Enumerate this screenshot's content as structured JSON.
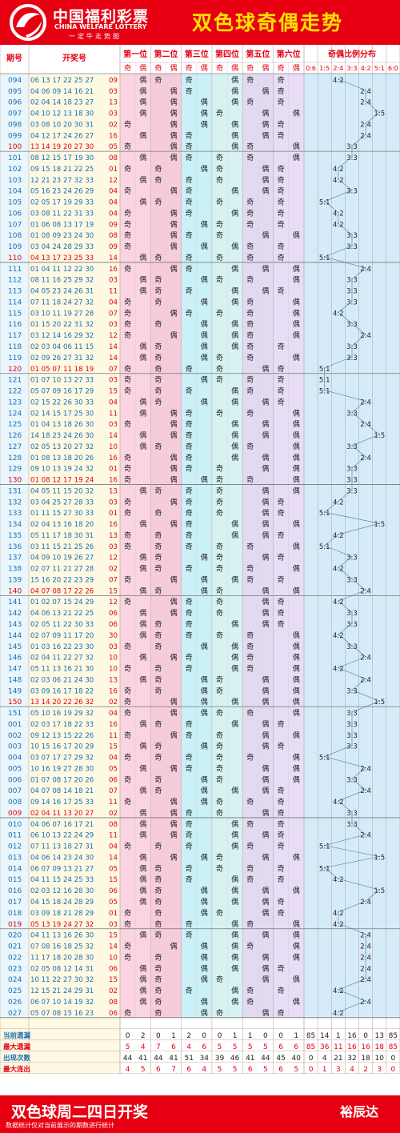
{
  "header": {
    "logo_cn": "中国福利彩票",
    "logo_en": "CHINA WELFARE LOTTERY",
    "logo_slogan": "一定牛走势图",
    "title": "双色球奇偶走势"
  },
  "footer": {
    "title": "双色球周二四日开奖",
    "brand": "裕辰达",
    "note": "数据统计仅对当前展示的期数进行统计"
  },
  "colors": {
    "brand_red": "#e60012",
    "title_yellow": "#ffe100",
    "odd_text": "#222222",
    "win_text": "#e60012",
    "pos_tint": [
      "#fbd4e2",
      "#f6ccdd",
      "#c9f1f7",
      "#d6f3f2",
      "#e3daf1",
      "#e7ddf6"
    ]
  },
  "chart_data": {
    "type": "table",
    "columns": {
      "issue": "期号",
      "numbers": "开奖号",
      "positions": [
        "第一位",
        "第二位",
        "第三位",
        "第四位",
        "第五位",
        "第六位"
      ],
      "odd": "奇",
      "even": "偶",
      "ratio_title": "奇偶比例分布",
      "ratios": [
        "0:6",
        "1:5",
        "2:4",
        "3:3",
        "4:2",
        "5:1",
        "6:0"
      ]
    },
    "rows": [
      [
        "094",
        "06 13 17 22 25 27",
        "09"
      ],
      [
        "095",
        "04 06 09 14 16 21",
        "03"
      ],
      [
        "096",
        "02 04 14 18 23 27",
        "13"
      ],
      [
        "097",
        "04 10 12 13 18 30",
        "03"
      ],
      [
        "098",
        "03 08 10 20 30 31",
        "02"
      ],
      [
        "099",
        "04 12 17 24 26 27",
        "16"
      ],
      [
        "100",
        "13 14 19 20 27 30",
        "05"
      ],
      [
        "101",
        "08 12 15 17 19 30",
        "08"
      ],
      [
        "102",
        "09 15 18 21 22 25",
        "01"
      ],
      [
        "103",
        "12 21 23 27 32 33",
        "12"
      ],
      [
        "104",
        "05 16 23 24 26 29",
        "04"
      ],
      [
        "105",
        "02 05 17 19 29 33",
        "04"
      ],
      [
        "106",
        "03 08 11 22 31 33",
        "04"
      ],
      [
        "107",
        "01 06 08 13 17 19",
        "09"
      ],
      [
        "108",
        "01 08 09 23 24 30",
        "08"
      ],
      [
        "109",
        "03 04 24 28 29 33",
        "09"
      ],
      [
        "110",
        "04 13 17 23 25 33",
        "14"
      ],
      [
        "111",
        "01 04 11 12 22 30",
        "16"
      ],
      [
        "112",
        "08 11 16 25 29 32",
        "03"
      ],
      [
        "113",
        "04 05 23 24 26 31",
        "11"
      ],
      [
        "114",
        "07 11 18 24 27 32",
        "04"
      ],
      [
        "115",
        "03 10 11 19 27 28",
        "07"
      ],
      [
        "116",
        "01 15 20 22 31 32",
        "03"
      ],
      [
        "117",
        "03 12 14 16 29 32",
        "12"
      ],
      [
        "118",
        "02 03 04 06 11 15",
        "14"
      ],
      [
        "119",
        "02 09 26 27 31 32",
        "14"
      ],
      [
        "120",
        "01 05 07 11 18 19",
        "07"
      ],
      [
        "121",
        "01 07 10 13 27 33",
        "03"
      ],
      [
        "122",
        "05 07 09 16 17 29",
        "15"
      ],
      [
        "123",
        "02 15 22 26 30 33",
        "04"
      ],
      [
        "124",
        "02 14 15 17 25 30",
        "11"
      ],
      [
        "125",
        "01 04 13 18 26 30",
        "03"
      ],
      [
        "126",
        "14 18 23 24 26 30",
        "14"
      ],
      [
        "127",
        "02 05 13 20 27 32",
        "10"
      ],
      [
        "128",
        "01 08 13 18 20 26",
        "16"
      ],
      [
        "129",
        "09 10 13 19 24 32",
        "01"
      ],
      [
        "130",
        "01 08 12 17 19 24",
        "16"
      ],
      [
        "131",
        "04 05 11 15 20 32",
        "13"
      ],
      [
        "132",
        "03 04 25 27 28 33",
        "03"
      ],
      [
        "133",
        "01 11 15 27 30 33",
        "01"
      ],
      [
        "134",
        "02 04 13 16 18 20",
        "16"
      ],
      [
        "135",
        "05 11 17 18 30 31",
        "13"
      ],
      [
        "136",
        "03 11 15 21 25 26",
        "03"
      ],
      [
        "137",
        "04 09 10 19 26 27",
        "12"
      ],
      [
        "138",
        "02 07 11 21 27 28",
        "02"
      ],
      [
        "139",
        "15 16 20 22 23 29",
        "07"
      ],
      [
        "140",
        "04 07 08 17 22 26",
        "15"
      ],
      [
        "141",
        "01 02 07 15 24 29",
        "12"
      ],
      [
        "142",
        "04 06 13 21 22 25",
        "06"
      ],
      [
        "143",
        "02 05 11 22 30 33",
        "06"
      ],
      [
        "144",
        "02 07 09 11 17 20",
        "30"
      ],
      [
        "145",
        "01 03 16 22 23 30",
        "03"
      ],
      [
        "146",
        "02 04 11 22 27 32",
        "10"
      ],
      [
        "147",
        "05 11 13 16 21 30",
        "10"
      ],
      [
        "148",
        "02 03 06 21 24 30",
        "13"
      ],
      [
        "149",
        "03 09 16 17 18 22",
        "16"
      ],
      [
        "150",
        "13 14 20 22 26 32",
        "02"
      ],
      [
        "151",
        "05 10 16 19 29 32",
        "04"
      ],
      [
        "001",
        "02 03 17 18 22 33",
        "16"
      ],
      [
        "002",
        "09 12 13 15 22 26",
        "11"
      ],
      [
        "003",
        "10 15 16 17 20 29",
        "15"
      ],
      [
        "004",
        "03 07 17 27 29 32",
        "04"
      ],
      [
        "005",
        "10 16 19 27 28 30",
        "05"
      ],
      [
        "006",
        "01 07 08 17 20 26",
        "06"
      ],
      [
        "007",
        "04 07 08 14 18 21",
        "07"
      ],
      [
        "008",
        "09 14 16 17 25 33",
        "11"
      ],
      [
        "009",
        "02 04 11 13 20 27",
        "02"
      ],
      [
        "010",
        "04 06 07 16 17 21",
        "08"
      ],
      [
        "011",
        "06 10 13 22 24 29",
        "11"
      ],
      [
        "012",
        "07 11 13 18 27 31",
        "04"
      ],
      [
        "013",
        "04 06 14 23 24 30",
        "14"
      ],
      [
        "014",
        "06 07 09 13 21 27",
        "05"
      ],
      [
        "015",
        "04 11 15 24 25 33",
        "15"
      ],
      [
        "016",
        "02 03 12 16 28 30",
        "06"
      ],
      [
        "017",
        "04 15 18 24 28 29",
        "05"
      ],
      [
        "018",
        "03 09 18 21 28 29",
        "01"
      ],
      [
        "019",
        "05 13 19 24 27 32",
        "03"
      ],
      [
        "020",
        "04 11 13 16 26 30",
        "15"
      ],
      [
        "021",
        "07 08 16 18 25 32",
        "14"
      ],
      [
        "022",
        "11 17 18 20 28 30",
        "10"
      ],
      [
        "023",
        "02 05 08 12 14 31",
        "06"
      ],
      [
        "024",
        "10 11 22 27 30 32",
        "15"
      ],
      [
        "025",
        "12 15 21 24 29 31",
        "02"
      ],
      [
        "026",
        "06 07 10 14 19 32",
        "08"
      ],
      [
        "027",
        "05 07 08 15 16 23",
        "06"
      ]
    ],
    "stats_labels": [
      "当前遗漏",
      "最大遗漏",
      "出现次数",
      "最大连出"
    ],
    "stats": [
      [
        0,
        2,
        0,
        1,
        2,
        0,
        0,
        1,
        1,
        0,
        0,
        1,
        85,
        14,
        1,
        16,
        0,
        13,
        85
      ],
      [
        5,
        4,
        7,
        6,
        4,
        6,
        5,
        5,
        5,
        5,
        6,
        6,
        85,
        36,
        11,
        16,
        16,
        18,
        85
      ],
      [
        44,
        41,
        44,
        41,
        51,
        34,
        39,
        46,
        41,
        44,
        45,
        40,
        0,
        4,
        21,
        32,
        18,
        10,
        0
      ],
      [
        4,
        5,
        6,
        7,
        6,
        4,
        5,
        5,
        6,
        5,
        6,
        5,
        0,
        1,
        3,
        4,
        2,
        3,
        0
      ]
    ]
  }
}
